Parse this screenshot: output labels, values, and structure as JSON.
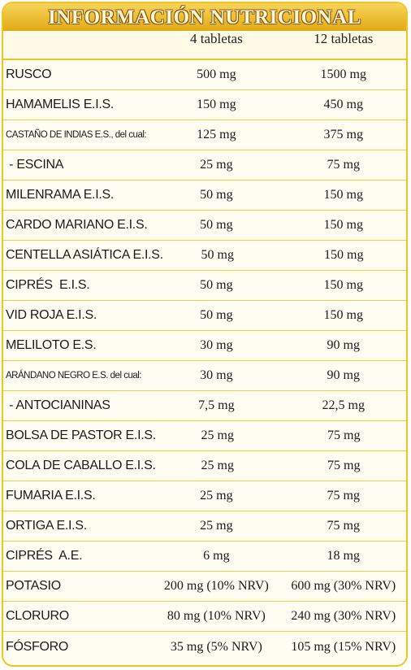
{
  "title": "INFORMACIÓN NUTRICIONAL",
  "table": {
    "header": [
      "4 tabletas",
      "12 tabletas"
    ],
    "rows": [
      [
        "RUSCO",
        "500 mg",
        "1500 mg"
      ],
      [
        "HAMAMELIS E.I.S.",
        "150 mg",
        "450 mg"
      ],
      [
        "CASTAÑO DE INDIAS E.S., del cual:",
        "125 mg",
        "375 mg"
      ],
      [
        " - ESCINA",
        "25 mg",
        "75 mg"
      ],
      [
        "MILENRAMA E.I.S.",
        "50 mg",
        "150 mg"
      ],
      [
        "CARDO MARIANO E.I.S.",
        "50 mg",
        "150 mg"
      ],
      [
        "CENTELLA ASIÁTICA E.I.S.",
        "50 mg",
        "150 mg"
      ],
      [
        "CIPRÉS  E.I.S.",
        "50 mg",
        "150 mg"
      ],
      [
        "VID ROJA E.I.S.",
        "50 mg",
        "150 mg"
      ],
      [
        "MELILOTO E.S.",
        "30 mg",
        "90 mg"
      ],
      [
        "ARÁNDANO NEGRO E.S. del cual:",
        "30 mg",
        "90 mg"
      ],
      [
        " - ANTOCIANINAS",
        "7,5 mg",
        "22,5 mg"
      ],
      [
        "BOLSA DE PASTOR E.I.S.",
        "25 mg",
        "75 mg"
      ],
      [
        "COLA DE CABALLO E.I.S.",
        "25 mg",
        "75 mg"
      ],
      [
        "FUMARIA E.I.S.",
        "25 mg",
        "75 mg"
      ],
      [
        "ORTIGA E.I.S.",
        "25 mg",
        "75 mg"
      ],
      [
        "CIPRÉS  A.E.",
        "6 mg",
        "18 mg"
      ],
      [
        "POTASIO",
        "200 mg (10% NRV)",
        "600 mg (30% NRV)"
      ],
      [
        "CLORURO",
        "80 mg (10% NRV)",
        "240 mg (30% NRV)"
      ],
      [
        "FÓSFORO",
        "35 mg (5% NRV)",
        "105 mg (15% NRV)"
      ]
    ]
  }
}
